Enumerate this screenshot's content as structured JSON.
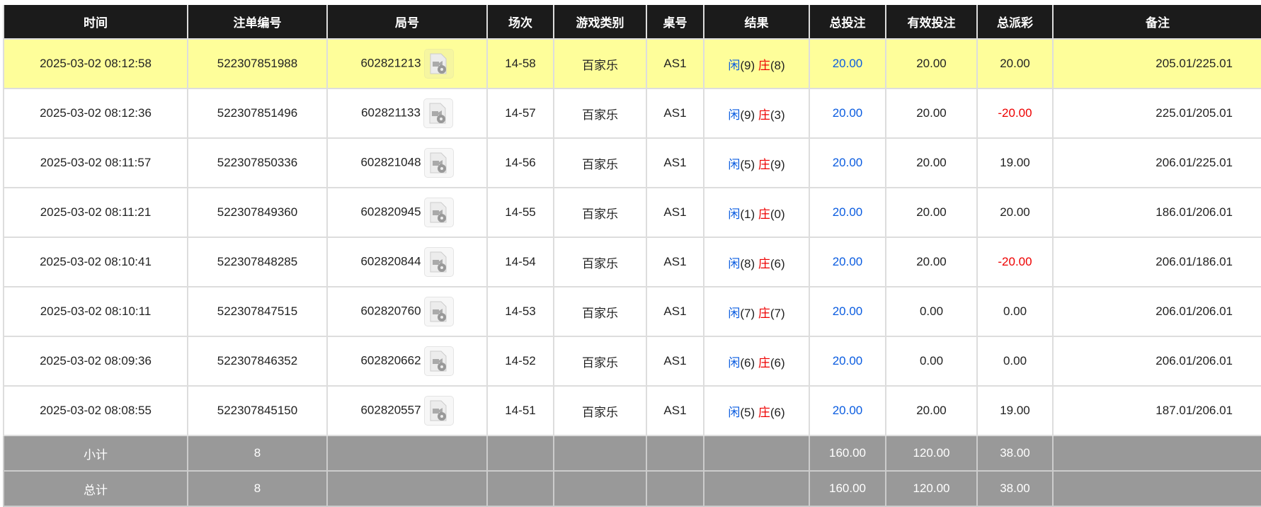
{
  "headers": [
    "时间",
    "注单编号",
    "局号",
    "场次",
    "游戏类别",
    "桌号",
    "结果",
    "总投注",
    "有效投注",
    "总派彩",
    "备注"
  ],
  "player_label": "闲",
  "banker_label": "庄",
  "rows": [
    {
      "time": "2025-03-02 08:12:58",
      "bet_id": "522307851988",
      "round": "602821213",
      "session": "14-58",
      "game": "百家乐",
      "table": "AS1",
      "p": "(9)",
      "b": "(8)",
      "total": "20.00",
      "valid": "20.00",
      "payout": "20.00",
      "payout_neg": false,
      "remark": "205.01/225.01",
      "highlight": true
    },
    {
      "time": "2025-03-02 08:12:36",
      "bet_id": "522307851496",
      "round": "602821133",
      "session": "14-57",
      "game": "百家乐",
      "table": "AS1",
      "p": "(9)",
      "b": "(3)",
      "total": "20.00",
      "valid": "20.00",
      "payout": "-20.00",
      "payout_neg": true,
      "remark": "225.01/205.01"
    },
    {
      "time": "2025-03-02 08:11:57",
      "bet_id": "522307850336",
      "round": "602821048",
      "session": "14-56",
      "game": "百家乐",
      "table": "AS1",
      "p": "(5)",
      "b": "(9)",
      "total": "20.00",
      "valid": "20.00",
      "payout": "19.00",
      "payout_neg": false,
      "remark": "206.01/225.01"
    },
    {
      "time": "2025-03-02 08:11:21",
      "bet_id": "522307849360",
      "round": "602820945",
      "session": "14-55",
      "game": "百家乐",
      "table": "AS1",
      "p": "(1)",
      "b": "(0)",
      "total": "20.00",
      "valid": "20.00",
      "payout": "20.00",
      "payout_neg": false,
      "remark": "186.01/206.01"
    },
    {
      "time": "2025-03-02 08:10:41",
      "bet_id": "522307848285",
      "round": "602820844",
      "session": "14-54",
      "game": "百家乐",
      "table": "AS1",
      "p": "(8)",
      "b": "(6)",
      "total": "20.00",
      "valid": "20.00",
      "payout": "-20.00",
      "payout_neg": true,
      "remark": "206.01/186.01"
    },
    {
      "time": "2025-03-02 08:10:11",
      "bet_id": "522307847515",
      "round": "602820760",
      "session": "14-53",
      "game": "百家乐",
      "table": "AS1",
      "p": "(7)",
      "b": "(7)",
      "total": "20.00",
      "valid": "0.00",
      "payout": "0.00",
      "payout_neg": false,
      "remark": "206.01/206.01"
    },
    {
      "time": "2025-03-02 08:09:36",
      "bet_id": "522307846352",
      "round": "602820662",
      "session": "14-52",
      "game": "百家乐",
      "table": "AS1",
      "p": "(6)",
      "b": "(6)",
      "total": "20.00",
      "valid": "0.00",
      "payout": "0.00",
      "payout_neg": false,
      "remark": "206.01/206.01"
    },
    {
      "time": "2025-03-02 08:08:55",
      "bet_id": "522307845150",
      "round": "602820557",
      "session": "14-51",
      "game": "百家乐",
      "table": "AS1",
      "p": "(5)",
      "b": "(6)",
      "total": "20.00",
      "valid": "20.00",
      "payout": "19.00",
      "payout_neg": false,
      "remark": "187.01/206.01"
    }
  ],
  "subtotal": {
    "label": "小计",
    "count": "8",
    "total": "160.00",
    "valid": "120.00",
    "payout": "38.00"
  },
  "grandtotal": {
    "label": "总计",
    "count": "8",
    "total": "160.00",
    "valid": "120.00",
    "payout": "38.00"
  },
  "colors": {
    "header_bg": "#1b1b1b",
    "highlight": "#fefe9a",
    "player": "#0a5ce0",
    "banker": "#e00000",
    "summary_bg": "#999999"
  },
  "icons": {
    "replay": "video-replay-icon"
  }
}
